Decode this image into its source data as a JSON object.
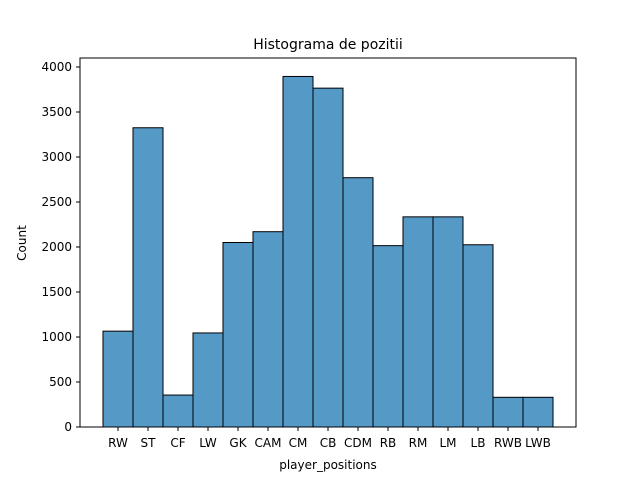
{
  "chart_data": {
    "type": "bar",
    "title": "Histograma de pozitii",
    "xlabel": "player_positions",
    "ylabel": "Count",
    "categories": [
      "RW",
      "ST",
      "CF",
      "LW",
      "GK",
      "CAM",
      "CM",
      "CB",
      "CDM",
      "RB",
      "RM",
      "LM",
      "LB",
      "RWB",
      "LWB"
    ],
    "values": [
      1065,
      3325,
      355,
      1045,
      2050,
      2170,
      3895,
      3765,
      2770,
      2015,
      2335,
      2335,
      2025,
      330,
      330
    ],
    "ylim": [
      0,
      4100
    ],
    "yticks": [
      0,
      500,
      1000,
      1500,
      2000,
      2500,
      3000,
      3500,
      4000
    ],
    "grid": false,
    "bar_color": "#5599c7",
    "edge_color": "#000000"
  }
}
